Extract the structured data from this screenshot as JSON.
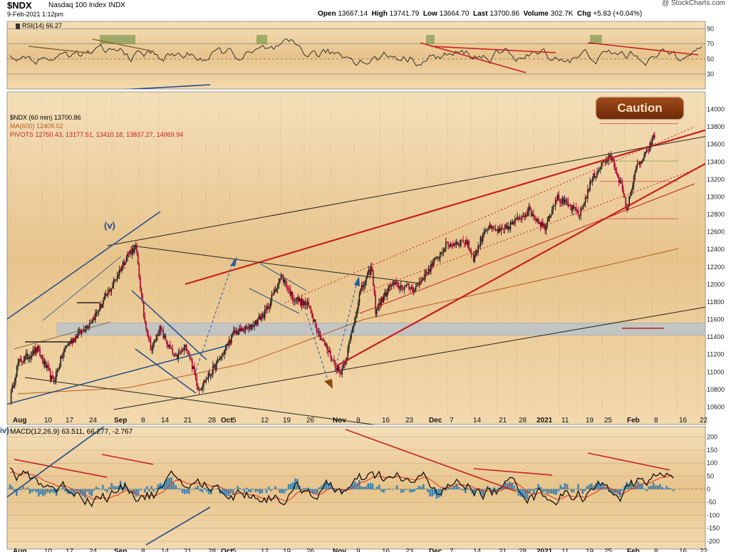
{
  "header": {
    "symbol": "$NDX",
    "company": "Nasdaq 100 Index",
    "exchange": "INDX",
    "datetime": "9-Feb-2021 1:12pm",
    "open_label": "Open",
    "open": "13667.14",
    "high_label": "High",
    "high": "13741.79",
    "low_label": "Low",
    "low": "13664.70",
    "last_label": "Last",
    "last": "13700.86",
    "volume_label": "Volume",
    "volume": "302.7K",
    "chg_label": "Chg",
    "chg": "+5.83 (+0.04%)",
    "watermark": "@ StockCharts.com"
  },
  "annotation": {
    "caution": "Caution",
    "wave_v": "(v)",
    "wave_iv": "iv)"
  },
  "colors": {
    "bg": "#e9c894",
    "bg_light": "#f2ddb9",
    "candle_up": "#1a1a1a",
    "candle_down": "#a8002a",
    "red_line": "#c8201e",
    "blue_line": "#1f4c8c",
    "rsi_line": "#222222",
    "ma_line": "#b8591c",
    "macd_line": "#111111",
    "signal_line": "#e0301e",
    "hist": "#2f7fb4",
    "zone": "#b4c3d2"
  },
  "chart_data": [
    {
      "type": "line",
      "panel": "RSI",
      "title": "RSI(14) 66.27",
      "yticks": [
        90,
        70,
        50,
        30
      ],
      "ylim": [
        10,
        100
      ],
      "series": [
        {
          "name": "RSI(14)",
          "last": 66.27
        }
      ]
    },
    {
      "type": "candlestick",
      "panel": "price",
      "title": "$NDX (60 min) 13700.86",
      "legend": [
        "$NDX (60 min) 13700.86",
        "MA(600) 12409.02",
        "PIVOTS 12750.43, 13177.51, 13410.18, 13837.27, 14069.94"
      ],
      "ylim": [
        10400,
        14200
      ],
      "yticks": [
        14000,
        13800,
        13600,
        13400,
        13200,
        13000,
        12800,
        12600,
        12400,
        12200,
        12000,
        11800,
        11600,
        11400,
        11200,
        11000,
        10800,
        10600
      ],
      "xticks": [
        "Aug",
        "10",
        "17",
        "24",
        "Sep",
        "8",
        "14",
        "21",
        "28",
        "Oct",
        "5",
        "12",
        "19",
        "26",
        "Nov",
        "9",
        "16",
        "23",
        "Dec",
        "7",
        "14",
        "21",
        "28",
        "2021",
        "11",
        "19",
        "25",
        "Feb",
        "8",
        "16",
        "22"
      ],
      "anchors": [
        {
          "d": 0,
          "p": 10680
        },
        {
          "d": 2,
          "p": 11100
        },
        {
          "d": 7,
          "p": 11260
        },
        {
          "d": 11,
          "p": 10880
        },
        {
          "d": 14,
          "p": 11280
        },
        {
          "d": 21,
          "p": 11600
        },
        {
          "d": 25,
          "p": 11900
        },
        {
          "d": 30,
          "p": 12350
        },
        {
          "d": 32,
          "p": 12430
        },
        {
          "d": 34,
          "p": 11650
        },
        {
          "d": 36,
          "p": 11250
        },
        {
          "d": 38,
          "p": 11500
        },
        {
          "d": 42,
          "p": 11150
        },
        {
          "d": 45,
          "p": 11300
        },
        {
          "d": 48,
          "p": 10800
        },
        {
          "d": 52,
          "p": 11050
        },
        {
          "d": 54,
          "p": 11200
        },
        {
          "d": 57,
          "p": 11450
        },
        {
          "d": 61,
          "p": 11500
        },
        {
          "d": 65,
          "p": 11680
        },
        {
          "d": 69,
          "p": 12100
        },
        {
          "d": 72,
          "p": 11850
        },
        {
          "d": 76,
          "p": 11750
        },
        {
          "d": 79,
          "p": 11400
        },
        {
          "d": 82,
          "p": 11150
        },
        {
          "d": 84,
          "p": 10980
        },
        {
          "d": 86,
          "p": 11250
        },
        {
          "d": 89,
          "p": 11900
        },
        {
          "d": 92,
          "p": 12200
        },
        {
          "d": 93,
          "p": 11700
        },
        {
          "d": 97,
          "p": 12000
        },
        {
          "d": 103,
          "p": 11950
        },
        {
          "d": 107,
          "p": 12200
        },
        {
          "d": 111,
          "p": 12450
        },
        {
          "d": 116,
          "p": 12500
        },
        {
          "d": 118,
          "p": 12300
        },
        {
          "d": 121,
          "p": 12650
        },
        {
          "d": 125,
          "p": 12600
        },
        {
          "d": 128,
          "p": 12700
        },
        {
          "d": 132,
          "p": 12850
        },
        {
          "d": 136,
          "p": 12650
        },
        {
          "d": 139,
          "p": 13000
        },
        {
          "d": 142,
          "p": 12900
        },
        {
          "d": 145,
          "p": 12800
        },
        {
          "d": 148,
          "p": 13200
        },
        {
          "d": 151,
          "p": 13400
        },
        {
          "d": 153,
          "p": 13450
        },
        {
          "d": 155,
          "p": 13200
        },
        {
          "d": 157,
          "p": 12850
        },
        {
          "d": 159,
          "p": 13300
        },
        {
          "d": 162,
          "p": 13500
        },
        {
          "d": 164,
          "p": 13700
        }
      ],
      "ma600": [
        {
          "d": 2,
          "p": 10750
        },
        {
          "d": 30,
          "p": 10820
        },
        {
          "d": 60,
          "p": 11100
        },
        {
          "d": 90,
          "p": 11600
        },
        {
          "d": 120,
          "p": 11900
        },
        {
          "d": 150,
          "p": 12200
        },
        {
          "d": 170,
          "p": 12409
        }
      ],
      "pivots": [
        12750.43,
        13177.51,
        13410.18,
        13837.27,
        14069.94
      ]
    },
    {
      "type": "line",
      "panel": "MACD",
      "title": "MACD(12,26,9) 63.511, 66.277, -2.767",
      "series": [
        {
          "name": "MACD(12,26,9)",
          "last": 63.511
        },
        {
          "name": "signal",
          "last": 66.277
        },
        {
          "name": "histogram",
          "last": -2.767
        }
      ],
      "ylim": [
        -230,
        240
      ],
      "yticks": [
        200,
        150,
        100,
        50,
        0,
        -50,
        -100,
        -150,
        -200
      ]
    }
  ]
}
